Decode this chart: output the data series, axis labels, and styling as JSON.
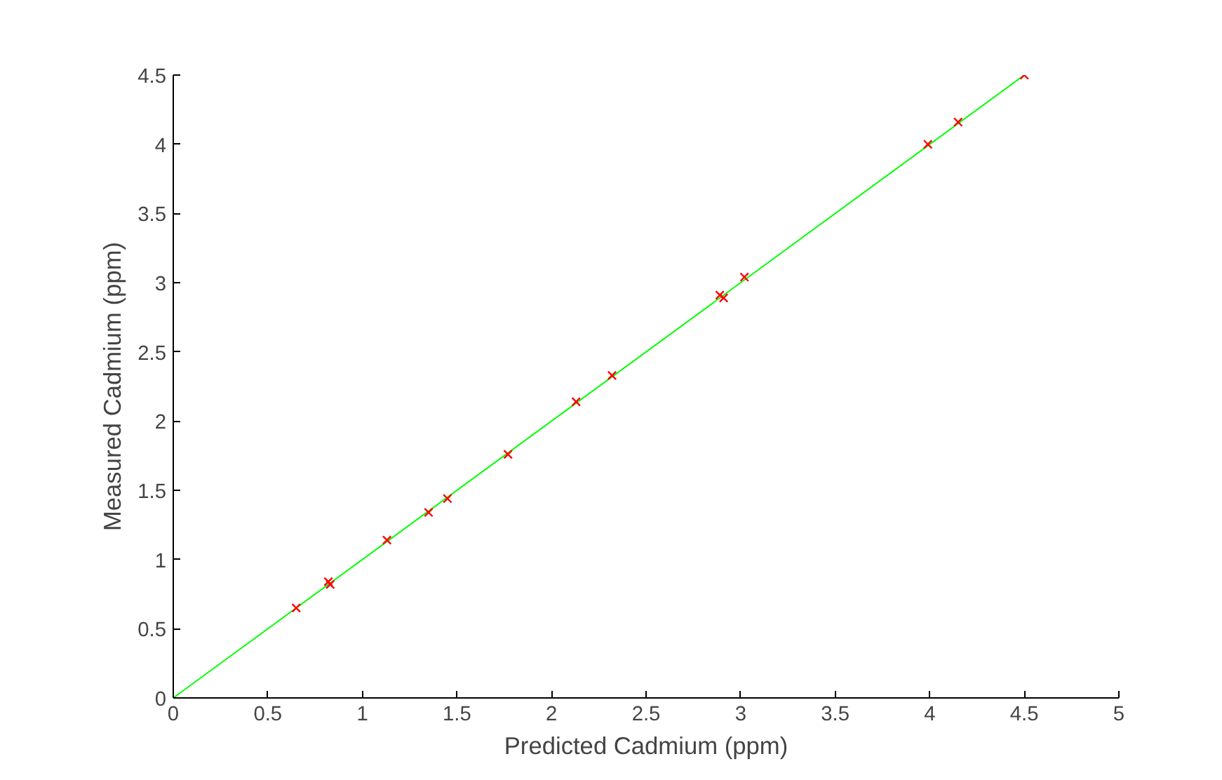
{
  "chart_data": {
    "type": "scatter",
    "xlabel": "Predicted Cadmium (ppm)",
    "ylabel": "Measured Cadmium (ppm)",
    "xlim": [
      0,
      5
    ],
    "ylim": [
      0,
      4.5
    ],
    "xticks": [
      0,
      0.5,
      1,
      1.5,
      2,
      2.5,
      3,
      3.5,
      4,
      4.5,
      5
    ],
    "yticks": [
      0,
      0.5,
      1,
      1.5,
      2,
      2.5,
      3,
      3.5,
      4,
      4.5
    ],
    "grid": false,
    "series": [
      {
        "type": "line",
        "marker": "none",
        "color": "#00ff00",
        "x": [
          0,
          4.5
        ],
        "values": [
          0,
          4.5
        ]
      },
      {
        "marker": "cross",
        "color": "#ff0000",
        "x": [
          0.65,
          0.82,
          0.83,
          1.13,
          1.35,
          1.45,
          1.77,
          2.13,
          2.32,
          2.89,
          2.91,
          3.02,
          3.99,
          4.15,
          4.5
        ],
        "values": [
          0.65,
          0.84,
          0.82,
          1.14,
          1.34,
          1.44,
          1.76,
          2.14,
          2.33,
          2.91,
          2.89,
          3.04,
          4.0,
          4.16,
          4.5
        ]
      }
    ]
  }
}
